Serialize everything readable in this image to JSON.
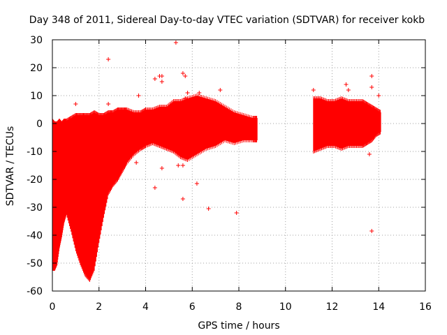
{
  "chart_data": {
    "type": "scatter",
    "title": "Day 348 of 2011, Sidereal Day-to-day VTEC variation (SDTVAR) for receiver kokb",
    "xlabel": "GPS time / hours",
    "ylabel": "SDTVAR / TECUs",
    "xlim": [
      0,
      16
    ],
    "ylim": [
      -60,
      30
    ],
    "xticks": [
      0,
      2,
      4,
      6,
      8,
      10,
      12,
      14,
      16
    ],
    "yticks": [
      -60,
      -50,
      -40,
      -30,
      -20,
      -10,
      0,
      10,
      20,
      30
    ],
    "grid": true,
    "marker": "plus",
    "color": "#ff0000",
    "band_envelope": {
      "description": "dense band of points: [x_hours, y_low, y_high]",
      "points": [
        [
          0.0,
          -52,
          1
        ],
        [
          0.1,
          -52,
          0
        ],
        [
          0.2,
          -50,
          0
        ],
        [
          0.3,
          -44,
          1
        ],
        [
          0.4,
          -40,
          0
        ],
        [
          0.5,
          -35,
          1
        ],
        [
          0.6,
          -32,
          1
        ],
        [
          0.8,
          -38,
          2
        ],
        [
          1.0,
          -45,
          3
        ],
        [
          1.2,
          -50,
          3
        ],
        [
          1.4,
          -54,
          3
        ],
        [
          1.6,
          -56,
          3
        ],
        [
          1.8,
          -52,
          4
        ],
        [
          2.0,
          -42,
          3
        ],
        [
          2.2,
          -33,
          3
        ],
        [
          2.4,
          -25,
          4
        ],
        [
          2.6,
          -22,
          4
        ],
        [
          2.8,
          -20,
          5
        ],
        [
          3.0,
          -17,
          5
        ],
        [
          3.2,
          -14,
          5
        ],
        [
          3.5,
          -11,
          4
        ],
        [
          3.8,
          -9,
          4
        ],
        [
          4.0,
          -8,
          5
        ],
        [
          4.3,
          -7,
          5
        ],
        [
          4.6,
          -8,
          6
        ],
        [
          4.9,
          -9,
          6
        ],
        [
          5.2,
          -10,
          8
        ],
        [
          5.5,
          -12,
          8
        ],
        [
          5.8,
          -13,
          9
        ],
        [
          6.2,
          -11,
          10
        ],
        [
          6.6,
          -9,
          9
        ],
        [
          7.0,
          -8,
          8
        ],
        [
          7.4,
          -6,
          6
        ],
        [
          7.8,
          -7,
          4
        ],
        [
          8.2,
          -6,
          3
        ],
        [
          8.6,
          -6,
          2
        ],
        [
          8.8,
          -6,
          2
        ]
      ]
    },
    "band_envelope_2": {
      "description": "second dense band: [x_hours, y_low, y_high]",
      "points": [
        [
          11.2,
          -10,
          9
        ],
        [
          11.5,
          -9,
          9
        ],
        [
          11.8,
          -8,
          8
        ],
        [
          12.1,
          -8,
          8
        ],
        [
          12.4,
          -9,
          9
        ],
        [
          12.7,
          -8,
          8
        ],
        [
          13.0,
          -8,
          8
        ],
        [
          13.3,
          -8,
          8
        ],
        [
          13.5,
          -7,
          7
        ],
        [
          13.7,
          -6,
          6
        ],
        [
          13.9,
          -4,
          5
        ],
        [
          14.1,
          -3,
          4
        ]
      ]
    },
    "outliers": [
      [
        2.4,
        23
      ],
      [
        5.3,
        29
      ],
      [
        5.6,
        18
      ],
      [
        5.8,
        11
      ],
      [
        5.7,
        17
      ],
      [
        4.4,
        16
      ],
      [
        4.6,
        17
      ],
      [
        4.7,
        17
      ],
      [
        3.7,
        10
      ],
      [
        6.3,
        11
      ],
      [
        7.2,
        12
      ],
      [
        4.4,
        -23
      ],
      [
        6.2,
        -21.5
      ],
      [
        6.7,
        -30.5
      ],
      [
        7.9,
        -32
      ],
      [
        5.6,
        -27
      ],
      [
        5.4,
        -15
      ],
      [
        5.6,
        -15
      ],
      [
        13.7,
        -38.5
      ],
      [
        13.6,
        -11
      ],
      [
        13.7,
        17
      ],
      [
        12.6,
        14
      ],
      [
        12.7,
        12
      ],
      [
        11.2,
        12
      ],
      [
        14.0,
        10
      ],
      [
        2.4,
        7
      ],
      [
        3.6,
        -14
      ],
      [
        4.7,
        -16
      ],
      [
        13.7,
        13
      ],
      [
        1.0,
        7
      ],
      [
        4.7,
        15
      ],
      [
        5.4,
        4
      ],
      [
        5.7,
        9
      ],
      [
        6.8,
        3
      ],
      [
        2.7,
        -1
      ]
    ]
  }
}
